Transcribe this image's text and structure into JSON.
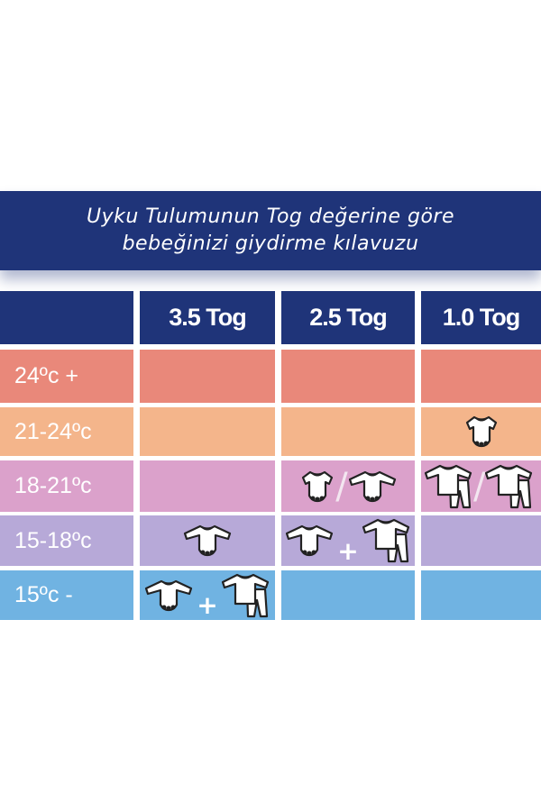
{
  "title": {
    "line1": "Uyku Tulumunun Tog değerine göre",
    "line2": "bebeğinizi giydirme kılavuzu"
  },
  "columns": [
    "3.5 Tog",
    "2.5 Tog",
    "1.0 Tog"
  ],
  "rows": [
    {
      "label": "24ºc +",
      "color": "#e9887a",
      "cells": [
        [],
        [],
        []
      ]
    },
    {
      "label": "21-24ºc",
      "color": "#f4b58b",
      "cells": [
        [],
        [],
        [
          {
            "icon": "short-sleeve-bodysuit"
          }
        ]
      ]
    },
    {
      "label": "18-21ºc",
      "color": "#dba1cb",
      "cells": [
        [],
        [
          {
            "icon": "short-sleeve-bodysuit"
          },
          {
            "sep": "/"
          },
          {
            "icon": "long-sleeve-bodysuit"
          }
        ],
        [
          {
            "icon": "top-and-pants"
          },
          {
            "sep": "/"
          },
          {
            "icon": "top-and-pants"
          }
        ]
      ]
    },
    {
      "label": "15-18ºc",
      "color": "#b7a9d8",
      "cells": [
        [
          {
            "icon": "long-sleeve-bodysuit"
          }
        ],
        [
          {
            "icon": "long-sleeve-bodysuit"
          },
          {
            "sep": "+"
          },
          {
            "icon": "top-and-pants"
          }
        ],
        []
      ]
    },
    {
      "label": "15ºc -",
      "color": "#70b3e2",
      "cells": [
        [
          {
            "icon": "long-sleeve-bodysuit"
          },
          {
            "sep": "+"
          },
          {
            "icon": "top-and-pants"
          }
        ],
        [],
        []
      ]
    }
  ],
  "colors": {
    "navy": "#1f3479"
  }
}
